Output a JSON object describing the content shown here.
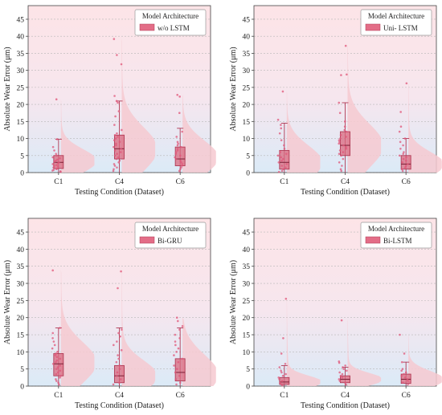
{
  "colors": {
    "band_top": "#fde4e7",
    "band_bottom": "#dbeaf7",
    "grid": "#b8b8b8",
    "violin": "#f6c9d0",
    "box": "#d9687e",
    "box_edge": "#b03a55",
    "point": "#e0577a",
    "legend_swatch": "#e36d87"
  },
  "chart_data": [
    {
      "type": "violin-box",
      "xlabel": "Testing Condition (Dataset)",
      "ylabel": "Absolute Wear Error (μm)",
      "ylim": [
        0,
        49
      ],
      "yticks": [
        0,
        5,
        10,
        15,
        20,
        25,
        30,
        35,
        40,
        45
      ],
      "categories": [
        "C1",
        "C4",
        "C6"
      ],
      "legend_title": "Model Architecture",
      "legend_label": "w/o LSTM",
      "legend_position": "top-right",
      "grid": true,
      "boxes": [
        {
          "q1": 1.2,
          "median": 3.0,
          "q3": 5.0,
          "whisker_low": 0.0,
          "whisker_high": 9.8,
          "violin_peak": 3.5,
          "violin_max": 21.5
        },
        {
          "q1": 4.0,
          "median": 7.0,
          "q3": 11.0,
          "whisker_low": 0.0,
          "whisker_high": 21.0,
          "violin_peak": 7.0,
          "violin_max": 39.5
        },
        {
          "q1": 2.0,
          "median": 4.0,
          "q3": 7.5,
          "whisker_low": 0.0,
          "whisker_high": 13.0,
          "violin_peak": 4.5,
          "violin_max": 23.0
        }
      ],
      "points": [
        [
          21.5,
          9.8,
          7.5,
          6.5,
          5.5,
          5.0,
          4.5,
          4.2,
          3.8,
          3.5,
          3.2,
          3.0,
          2.7,
          2.5,
          2.2,
          2.0,
          1.8,
          1.5,
          1.2,
          1.0,
          0.8,
          0.6,
          0.4,
          0.2
        ],
        [
          39.2,
          34.5,
          31.8,
          22.5,
          21.0,
          20.5,
          18.0,
          16.5,
          14.0,
          12.5,
          11.5,
          11.0,
          10.5,
          10.0,
          9.5,
          9.0,
          8.5,
          8.0,
          7.5,
          7.0,
          6.5,
          6.0,
          5.5,
          5.0,
          4.5,
          4.0,
          3.5,
          3.0,
          2.5,
          2.0,
          1.5,
          1.0,
          0.5
        ],
        [
          22.8,
          22.3,
          17.5,
          12.0,
          10.5,
          9.0,
          8.5,
          8.0,
          7.5,
          7.0,
          6.5,
          6.0,
          5.5,
          5.0,
          4.5,
          4.0,
          3.5,
          3.0,
          2.5,
          2.0,
          1.5,
          1.0,
          0.5
        ]
      ]
    },
    {
      "type": "violin-box",
      "xlabel": "Testing Condition (Dataset)",
      "ylabel": "Absolute Wear Error (μm)",
      "ylim": [
        0,
        49
      ],
      "yticks": [
        0,
        5,
        10,
        15,
        20,
        25,
        30,
        35,
        40,
        45
      ],
      "categories": [
        "C1",
        "C4",
        "C6"
      ],
      "legend_title": "Model Architecture",
      "legend_label": "Uni- LSTM",
      "legend_position": "top-right",
      "grid": true,
      "boxes": [
        {
          "q1": 1.0,
          "median": 3.0,
          "q3": 6.5,
          "whisker_low": 0.0,
          "whisker_high": 14.5,
          "violin_peak": 3.0,
          "violin_max": 24.0
        },
        {
          "q1": 5.0,
          "median": 8.0,
          "q3": 12.0,
          "whisker_low": 0.0,
          "whisker_high": 20.5,
          "violin_peak": 8.0,
          "violin_max": 37.5
        },
        {
          "q1": 1.0,
          "median": 2.5,
          "q3": 5.0,
          "whisker_low": 0.0,
          "whisker_high": 10.0,
          "violin_peak": 2.5,
          "violin_max": 26.5
        }
      ],
      "points": [
        [
          23.8,
          15.5,
          14.0,
          13.0,
          11.5,
          9.5,
          8.0,
          7.0,
          6.0,
          5.5,
          5.0,
          4.5,
          4.0,
          3.5,
          3.0,
          2.5,
          2.0,
          1.5,
          1.0,
          0.5,
          0.2
        ],
        [
          37.2,
          28.8,
          28.6,
          20.5,
          17.5,
          15.0,
          13.5,
          12.5,
          12.0,
          11.0,
          10.5,
          10.0,
          9.5,
          9.0,
          8.5,
          8.0,
          7.5,
          7.0,
          6.5,
          6.0,
          5.5,
          5.0,
          4.0,
          3.0,
          2.0,
          1.0,
          0.5
        ],
        [
          26.2,
          17.8,
          13.5,
          12.0,
          10.0,
          9.0,
          8.0,
          7.0,
          6.0,
          5.5,
          5.0,
          4.5,
          4.0,
          3.5,
          3.0,
          2.5,
          2.0,
          1.5,
          1.0,
          0.5
        ]
      ]
    },
    {
      "type": "violin-box",
      "xlabel": "Testing Condition (Dataset)",
      "ylabel": "Absolute Wear Error (μm)",
      "ylim": [
        0,
        49
      ],
      "yticks": [
        0,
        5,
        10,
        15,
        20,
        25,
        30,
        35,
        40,
        45
      ],
      "categories": [
        "C1",
        "C4",
        "C6"
      ],
      "legend_title": "Model Architecture",
      "legend_label": "Bi-GRU",
      "legend_position": "top-right",
      "grid": true,
      "boxes": [
        {
          "q1": 3.0,
          "median": 6.5,
          "q3": 9.5,
          "whisker_low": 0.0,
          "whisker_high": 17.0,
          "violin_peak": 7.0,
          "violin_max": 34.0
        },
        {
          "q1": 1.0,
          "median": 3.0,
          "q3": 6.0,
          "whisker_low": 0.0,
          "whisker_high": 17.0,
          "violin_peak": 3.0,
          "violin_max": 34.0
        },
        {
          "q1": 1.5,
          "median": 4.0,
          "q3": 8.0,
          "whisker_low": 0.0,
          "whisker_high": 17.0,
          "violin_peak": 3.5,
          "violin_max": 20.0
        }
      ],
      "points": [
        [
          33.8,
          17.0,
          15.5,
          14.0,
          13.0,
          12.0,
          11.0,
          10.0,
          9.5,
          9.0,
          8.5,
          8.0,
          7.5,
          7.0,
          6.5,
          6.0,
          5.5,
          5.0,
          4.5,
          4.0,
          3.5,
          3.0,
          2.5,
          2.0,
          1.5,
          1.0,
          0.5
        ],
        [
          33.5,
          28.6,
          16.5,
          15.5,
          14.5,
          13.0,
          12.0,
          10.5,
          9.0,
          8.0,
          7.0,
          6.0,
          5.0,
          4.0,
          3.0,
          2.0,
          1.0,
          0.5
        ],
        [
          20.0,
          19.0,
          17.5,
          16.5,
          15.0,
          14.0,
          13.0,
          12.0,
          11.0,
          10.0,
          9.0,
          8.0,
          7.0,
          6.0,
          5.0,
          4.0,
          3.0,
          2.0,
          1.0,
          0.5
        ]
      ]
    },
    {
      "type": "violin-box",
      "xlabel": "Testing Condition (Dataset)",
      "ylabel": "Absolute Wear Error (μm)",
      "ylim": [
        0,
        49
      ],
      "yticks": [
        0,
        5,
        10,
        15,
        20,
        25,
        30,
        35,
        40,
        45
      ],
      "categories": [
        "C1",
        "C4",
        "C6"
      ],
      "legend_title": "Model Architecture",
      "legend_label": "Bi-LSTM",
      "legend_position": "top-right",
      "grid": true,
      "boxes": [
        {
          "q1": 0.5,
          "median": 1.2,
          "q3": 2.5,
          "whisker_low": 0.0,
          "whisker_high": 6.0,
          "violin_peak": 1.2,
          "violin_max": 25.5
        },
        {
          "q1": 1.0,
          "median": 2.0,
          "q3": 3.0,
          "whisker_low": 0.0,
          "whisker_high": 5.5,
          "violin_peak": 2.0,
          "violin_max": 19.5
        },
        {
          "q1": 0.8,
          "median": 2.0,
          "q3": 3.5,
          "whisker_low": 0.0,
          "whisker_high": 7.0,
          "violin_peak": 2.0,
          "violin_max": 15.0
        }
      ],
      "points": [
        [
          25.5,
          14.0,
          9.5,
          6.5,
          5.5,
          4.5,
          4.0,
          3.5,
          3.0,
          2.5,
          2.0,
          1.5,
          1.0,
          0.5,
          0.2
        ],
        [
          19.2,
          7.2,
          6.8,
          6.0,
          5.5,
          5.0,
          4.5,
          4.0,
          3.5,
          3.0,
          2.5,
          2.0,
          1.5,
          1.0,
          0.5
        ],
        [
          15.0,
          9.5,
          7.0,
          5.0,
          4.5,
          4.0,
          3.5,
          3.0,
          2.5,
          2.0,
          1.5,
          1.0,
          0.5
        ]
      ]
    }
  ]
}
